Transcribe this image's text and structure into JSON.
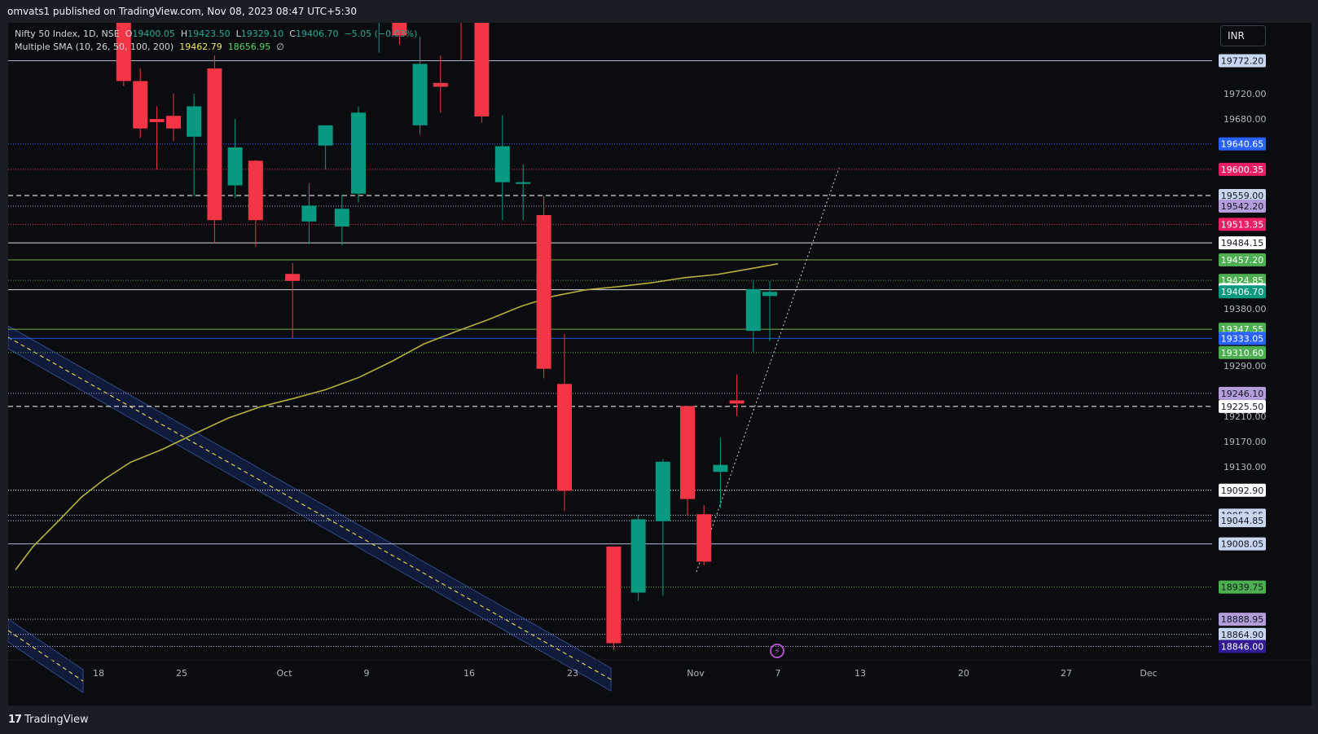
{
  "header": {
    "publish_line": "omvats1 published on TradingView.com, Nov 08, 2023 08:47 UTC+5:30"
  },
  "legend": {
    "symbol": "Nifty 50 Index, 1D, NSE",
    "open_label": "O",
    "open_value": "19400.05",
    "high_label": "H",
    "high_value": "19423.50",
    "low_label": "L",
    "low_value": "19329.10",
    "close_label": "C",
    "close_value": "19406.70",
    "change": "−5.05 (−0.03%)",
    "indicator": "Multiple SMA (10, 26, 50, 100, 200)",
    "sma_value_1": "19462.79",
    "sma_value_2": "18656.95",
    "sma_value_3": "∅"
  },
  "currency_button": "INR",
  "footer": {
    "brand": "TradingView",
    "logo_glyph": "17"
  },
  "colors": {
    "up": "#089981",
    "down": "#f23645",
    "sma": "#b7b03a",
    "bg": "#0b0c10",
    "axis_text": "#b2b5be"
  },
  "chart_data": {
    "type": "candlestick",
    "currency": "INR",
    "y_axis_ticks": [
      19720.0,
      19680.0,
      19380.0,
      19290.0,
      19210.0,
      19170.0,
      19130.0
    ],
    "x_axis_labels": [
      "18",
      "25",
      "Oct",
      "9",
      "16",
      "23",
      "Nov",
      "7",
      "13",
      "20",
      "27",
      "Dec"
    ],
    "candles": [
      {
        "date": "2023-09-20",
        "o": 19840,
        "h": 19860,
        "l": 19732,
        "c": 19740
      },
      {
        "date": "2023-09-21",
        "o": 19740,
        "h": 19760,
        "l": 19650,
        "c": 19665
      },
      {
        "date": "2023-09-22",
        "o": 19680,
        "h": 19700,
        "l": 19600,
        "c": 19675
      },
      {
        "date": "2023-09-25",
        "o": 19685,
        "h": 19720,
        "l": 19645,
        "c": 19665
      },
      {
        "date": "2023-09-26",
        "o": 19652,
        "h": 19720,
        "l": 19558,
        "c": 19700
      },
      {
        "date": "2023-09-27",
        "o": 19760,
        "h": 19780,
        "l": 19483,
        "c": 19520
      },
      {
        "date": "2023-09-28",
        "o": 19575,
        "h": 19680,
        "l": 19555,
        "c": 19635
      },
      {
        "date": "2023-09-29",
        "o": 19614,
        "h": 19615,
        "l": 19478,
        "c": 19520
      },
      {
        "date": "2023-10-03",
        "o": 19435,
        "h": 19452,
        "l": 19333,
        "c": 19424
      },
      {
        "date": "2023-10-04",
        "o": 19518,
        "h": 19578,
        "l": 19482,
        "c": 19543
      },
      {
        "date": "2023-10-05",
        "o": 19638,
        "h": 19668,
        "l": 19600,
        "c": 19670
      },
      {
        "date": "2023-10-06",
        "o": 19510,
        "h": 19560,
        "l": 19480,
        "c": 19538
      },
      {
        "date": "2023-10-09",
        "o": 19562,
        "h": 19700,
        "l": 19548,
        "c": 19690
      },
      {
        "date": "2023-10-10",
        "o": 19832,
        "h": 19860,
        "l": 19785,
        "c": 19860
      },
      {
        "date": "2023-10-11",
        "o": 19838,
        "h": 19860,
        "l": 19798,
        "c": 19812
      },
      {
        "date": "2023-10-12",
        "o": 19670,
        "h": 19810,
        "l": 19655,
        "c": 19767
      },
      {
        "date": "2023-10-13",
        "o": 19737,
        "h": 19780,
        "l": 19690,
        "c": 19731
      },
      {
        "date": "2023-10-16",
        "o": 19860,
        "h": 19860,
        "l": 19773,
        "c": 19850
      },
      {
        "date": "2023-10-17",
        "o": 19838,
        "h": 19838,
        "l": 19674,
        "c": 19684
      },
      {
        "date": "2023-10-18",
        "o": 19580,
        "h": 19686,
        "l": 19520,
        "c": 19637
      },
      {
        "date": "2023-10-19",
        "o": 19580,
        "h": 19608,
        "l": 19520,
        "c": 19580
      },
      {
        "date": "2023-10-20",
        "o": 19528,
        "h": 19558,
        "l": 19270,
        "c": 19285
      },
      {
        "date": "2023-10-23",
        "o": 19261,
        "h": 19340,
        "l": 19060,
        "c": 19092
      },
      {
        "date": "2023-10-25",
        "o": 19004,
        "h": 19004,
        "l": 18840,
        "c": 18851
      },
      {
        "date": "2023-10-26",
        "o": 18931,
        "h": 19054,
        "l": 18918,
        "c": 19047
      },
      {
        "date": "2023-10-27",
        "o": 19044,
        "h": 19142,
        "l": 18926,
        "c": 19138
      },
      {
        "date": "2023-10-30",
        "o": 19226,
        "h": 19226,
        "l": 19053,
        "c": 19079
      },
      {
        "date": "2023-10-31",
        "o": 19055,
        "h": 19069,
        "l": 18974,
        "c": 18980
      },
      {
        "date": "2023-11-01",
        "o": 19122,
        "h": 19176,
        "l": 19065,
        "c": 19133
      },
      {
        "date": "2023-11-02",
        "o": 19235,
        "h": 19276,
        "l": 19210,
        "c": 19230
      },
      {
        "date": "2023-11-03",
        "o": 19345,
        "h": 19424,
        "l": 19312,
        "c": 19411
      },
      {
        "date": "2023-11-06",
        "o": 19400.05,
        "h": 19423.5,
        "l": 19329.1,
        "c": 19406.7
      }
    ],
    "sma": {
      "name": "",
      "points": [
        [
          19,
          18967
        ],
        [
          40,
          19003
        ],
        [
          70,
          19042
        ],
        [
          100,
          19082
        ],
        [
          130,
          19112
        ],
        [
          160,
          19137
        ],
        [
          200,
          19158
        ],
        [
          240,
          19183
        ],
        [
          280,
          19207
        ],
        [
          320,
          19225
        ],
        [
          360,
          19238
        ],
        [
          400,
          19252
        ],
        [
          440,
          19271
        ],
        [
          480,
          19296
        ],
        [
          520,
          19324
        ],
        [
          560,
          19344
        ],
        [
          600,
          19363
        ],
        [
          640,
          19384
        ],
        [
          680,
          19400
        ],
        [
          720,
          19410
        ],
        [
          760,
          19415
        ],
        [
          800,
          19421
        ],
        [
          840,
          19429
        ],
        [
          880,
          19434
        ],
        [
          920,
          19443
        ],
        [
          955,
          19451
        ]
      ]
    },
    "horizontal_levels": [
      {
        "value": 19772.2,
        "label": "19772.20",
        "color": "#c8d6f0",
        "style": "solid",
        "label_bg": "#c8d6f0",
        "label_fg": "#131722"
      },
      {
        "value": 19640.65,
        "label": "19640.65",
        "color": "#2962ff",
        "style": "dotted",
        "label_bg": "#2962ff",
        "label_fg": "#ffffff"
      },
      {
        "value": 19600.35,
        "label": "19600.35",
        "color": "#f23645",
        "style": "dotted",
        "label_bg": "#e91e63",
        "label_fg": "#ffffff"
      },
      {
        "value": 19559.0,
        "label": "19559.00",
        "color": "#ffffff",
        "style": "dashed",
        "label_bg": "#c8d6f0",
        "label_fg": "#131722"
      },
      {
        "value": 19542.2,
        "label": "19542.20",
        "color": "#b39ddb",
        "style": "dotted",
        "label_bg": "#b39ddb",
        "label_fg": "#131722"
      },
      {
        "value": 19513.35,
        "label": "19513.35",
        "color": "#f23645",
        "style": "dotted",
        "label_bg": "#e91e63",
        "label_fg": "#ffffff"
      },
      {
        "value": 19484.15,
        "label": "19484.15",
        "color": "#ffffff",
        "style": "solid",
        "label_bg": "#ffffff",
        "label_fg": "#131722"
      },
      {
        "value": 19457.2,
        "label": "19457.20",
        "color": "#8bc34a",
        "style": "solid",
        "label_bg": "#4caf50",
        "label_fg": "#ffffff"
      },
      {
        "value": 19424.85,
        "label": "19424.85",
        "color": "#4caf50",
        "style": "dotted",
        "label_bg": "#4caf50",
        "label_fg": "#ffffff"
      },
      {
        "value": 19410.0,
        "label": "19410.00",
        "color": "#ffffff",
        "style": "solid",
        "label_bg": "#ffffff",
        "label_fg": "#131722"
      },
      {
        "value": 19406.7,
        "label": "19406.70",
        "color": "#089981",
        "style": "none",
        "label_bg": "#089981",
        "label_fg": "#ffffff"
      },
      {
        "value": 19347.55,
        "label": "19347.55",
        "color": "#8bc34a",
        "style": "solid",
        "label_bg": "#4caf50",
        "label_fg": "#ffffff"
      },
      {
        "value": 19333.05,
        "label": "19333.05",
        "color": "#2962ff",
        "style": "solid",
        "label_bg": "#2962ff",
        "label_fg": "#ffffff"
      },
      {
        "value": 19310.6,
        "label": "19310.60",
        "color": "#4caf50",
        "style": "dotted",
        "label_bg": "#4caf50",
        "label_fg": "#ffffff"
      },
      {
        "value": 19246.1,
        "label": "19246.10",
        "color": "#b39ddb",
        "style": "dotted",
        "label_bg": "#b39ddb",
        "label_fg": "#131722"
      },
      {
        "value": 19225.5,
        "label": "19225.50",
        "color": "#ffffff",
        "style": "dashed",
        "label_bg": "#ffffff",
        "label_fg": "#131722"
      },
      {
        "value": 19092.9,
        "label": "19092.90",
        "color": "#ffffff",
        "style": "dotted",
        "label_bg": "#ffffff",
        "label_fg": "#131722"
      },
      {
        "value": 19053.55,
        "label": "19053.55",
        "color": "#c8d6f0",
        "style": "dotted",
        "label_bg": "#c8d6f0",
        "label_fg": "#131722"
      },
      {
        "value": 19044.85,
        "label": "19044.85",
        "color": "#c8d6f0",
        "style": "dotted",
        "label_bg": "#c8d6f0",
        "label_fg": "#131722"
      },
      {
        "value": 19008.05,
        "label": "19008.05",
        "color": "#c8d6f0",
        "style": "solid",
        "label_bg": "#c8d6f0",
        "label_fg": "#131722"
      },
      {
        "value": 18939.75,
        "label": "18939.75",
        "color": "#4caf50",
        "style": "dotted",
        "label_bg": "#4caf50",
        "label_fg": "#131722"
      },
      {
        "value": 18888.95,
        "label": "18888.95",
        "color": "#b39ddb",
        "style": "dotted",
        "label_bg": "#b39ddb",
        "label_fg": "#131722"
      },
      {
        "value": 18864.9,
        "label": "18864.90",
        "color": "#c8d6f0",
        "style": "dotted",
        "label_bg": "#c8d6f0",
        "label_fg": "#131722"
      },
      {
        "value": 18846.0,
        "label": "18846.00",
        "color": "#b39ddb",
        "style": "dotted",
        "label_bg": "#311b92",
        "label_fg": "#ffffff"
      }
    ]
  }
}
